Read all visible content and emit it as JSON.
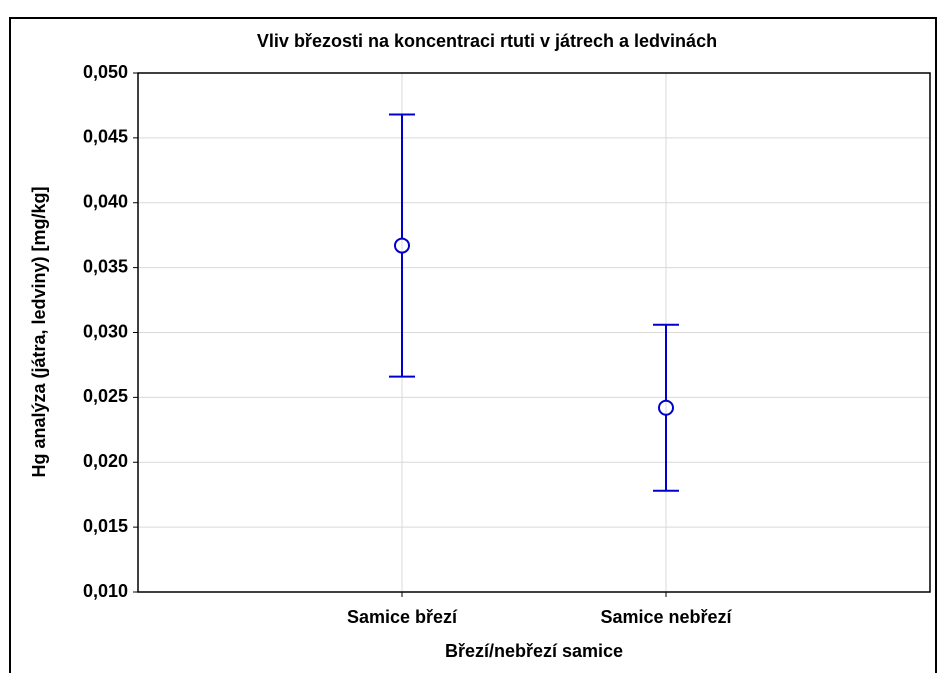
{
  "chart_data": {
    "type": "errorbar",
    "title": "Vliv březosti na koncentraci rtuti v játrech a ledvinách",
    "x_label": "Březí/nebřezí samice",
    "y_label": "Hg analýza (játra, ledviny) [mg/kg]",
    "categories": [
      "Samice březí",
      "Samice nebřezí"
    ],
    "values": [
      0.0367,
      0.0242
    ],
    "errors": [
      0.0101,
      0.0064
    ],
    "color": "#0000cc",
    "ylim": [
      0.01,
      0.05
    ],
    "yticks": [
      {
        "value": 0.01,
        "label": "0,010"
      },
      {
        "value": 0.015,
        "label": "0,015"
      },
      {
        "value": 0.02,
        "label": "0,020"
      },
      {
        "value": 0.025,
        "label": "0,025"
      },
      {
        "value": 0.03,
        "label": "0,030"
      },
      {
        "value": 0.035,
        "label": "0,035"
      },
      {
        "value": 0.04,
        "label": "0,040"
      },
      {
        "value": 0.045,
        "label": "0,045"
      },
      {
        "value": 0.05,
        "label": "0,050"
      }
    ],
    "grid": true
  }
}
